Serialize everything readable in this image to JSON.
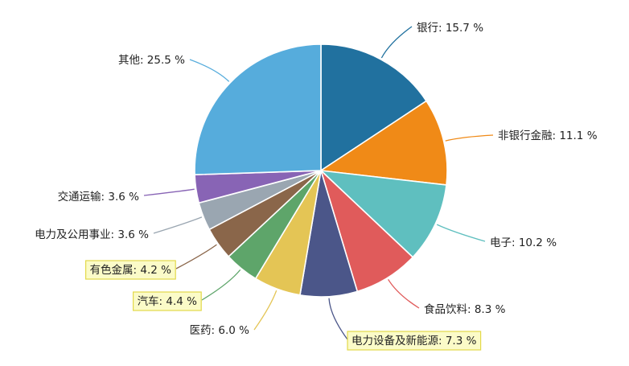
{
  "chart_data": {
    "type": "pie",
    "title": "",
    "unit": "%",
    "slices": [
      {
        "label": "银行",
        "value": 15.7,
        "color": "#21719f",
        "highlight": false
      },
      {
        "label": "非银行金融",
        "value": 11.1,
        "color": "#f08a17",
        "highlight": false
      },
      {
        "label": "电子",
        "value": 10.2,
        "color": "#5fbfbf",
        "highlight": false
      },
      {
        "label": "食品饮料",
        "value": 8.3,
        "color": "#e05b5b",
        "highlight": false
      },
      {
        "label": "电力设备及新能源",
        "value": 7.3,
        "color": "#4b5689",
        "highlight": true
      },
      {
        "label": "医药",
        "value": 6.0,
        "color": "#e4c555",
        "highlight": false
      },
      {
        "label": "汽车",
        "value": 4.4,
        "color": "#5ea56a",
        "highlight": true
      },
      {
        "label": "有色金属",
        "value": 4.2,
        "color": "#8a664a",
        "highlight": true
      },
      {
        "label": "电力及公用事业",
        "value": 3.6,
        "color": "#9aa6b1",
        "highlight": false
      },
      {
        "label": "交通运输",
        "value": 3.6,
        "color": "#8864b5",
        "highlight": false
      },
      {
        "label": "其他",
        "value": 25.5,
        "color": "#56acdc",
        "highlight": false
      }
    ],
    "label_texts": [
      "银行: 15.7 %",
      "非银行金融: 11.1 %",
      "电子: 10.2 %",
      "食品饮料: 8.3 %",
      "电力设备及新能源: 7.3 %",
      "医药: 6.0 %",
      "汽车: 4.4 %",
      "有色金属: 4.2 %",
      "电力及公用事业: 3.6 %",
      "交通运输: 3.6 %",
      "其他: 25.5 %"
    ],
    "start_angle": "12 o'clock",
    "direction": "clockwise",
    "legend": "none",
    "grid": false
  }
}
